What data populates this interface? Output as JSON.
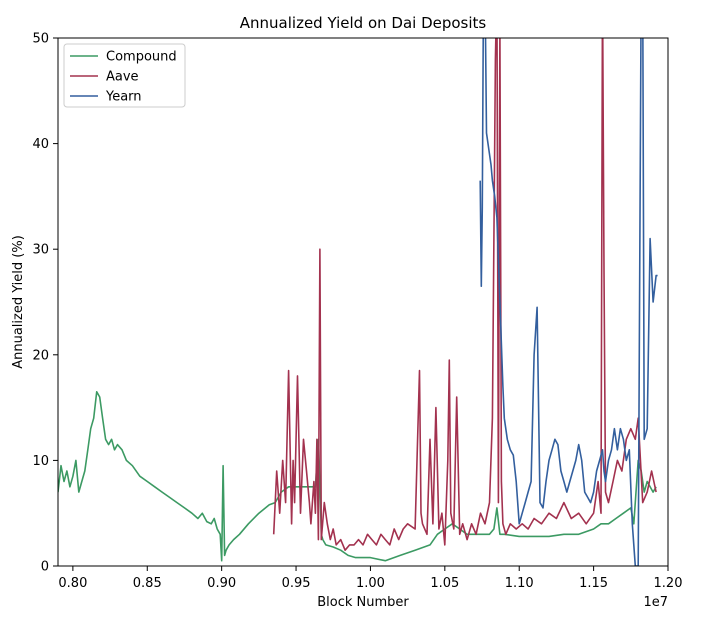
{
  "chart_data": {
    "type": "line",
    "title": "Annualized Yield on Dai Deposits",
    "xlabel": "Block Number",
    "ylabel": "Annualized Yield (%)",
    "x_offset_label": "1e7",
    "xlim": [
      0.79,
      1.2
    ],
    "ylim": [
      0,
      50
    ],
    "x_ticks": [
      0.8,
      0.85,
      0.9,
      0.95,
      1.0,
      1.05,
      1.1,
      1.15,
      1.2
    ],
    "x_tick_labels": [
      "0.80",
      "0.85",
      "0.90",
      "0.95",
      "1.00",
      "1.05",
      "1.10",
      "1.15",
      "1.20"
    ],
    "y_ticks": [
      0,
      10,
      20,
      30,
      40,
      50
    ],
    "y_tick_labels": [
      "0",
      "10",
      "20",
      "30",
      "40",
      "50"
    ],
    "grid": false,
    "legend_position": "top-left",
    "series": [
      {
        "name": "Compound",
        "color": "#3c9a63",
        "x": [
          0.79,
          0.792,
          0.794,
          0.796,
          0.798,
          0.8,
          0.802,
          0.804,
          0.806,
          0.808,
          0.81,
          0.812,
          0.814,
          0.816,
          0.818,
          0.82,
          0.821,
          0.822,
          0.824,
          0.826,
          0.828,
          0.83,
          0.833,
          0.836,
          0.84,
          0.845,
          0.85,
          0.855,
          0.86,
          0.865,
          0.87,
          0.875,
          0.88,
          0.884,
          0.887,
          0.89,
          0.893,
          0.895,
          0.897,
          0.899,
          0.9,
          0.901,
          0.902,
          0.903,
          0.905,
          0.908,
          0.912,
          0.918,
          0.925,
          0.932,
          0.936,
          0.94,
          0.945,
          0.95,
          0.955,
          0.96,
          0.963,
          0.965,
          0.966,
          0.967,
          0.968,
          0.97,
          0.975,
          0.98,
          0.985,
          0.99,
          0.995,
          1.0,
          1.01,
          1.02,
          1.03,
          1.04,
          1.045,
          1.05,
          1.055,
          1.06,
          1.065,
          1.07,
          1.075,
          1.08,
          1.083,
          1.085,
          1.087,
          1.09,
          1.1,
          1.11,
          1.12,
          1.13,
          1.14,
          1.15,
          1.155,
          1.16,
          1.165,
          1.17,
          1.175,
          1.177,
          1.18,
          1.182,
          1.184,
          1.186,
          1.188,
          1.19,
          1.192
        ],
        "y": [
          7.0,
          9.5,
          8.0,
          9.0,
          7.5,
          8.5,
          10.0,
          7.0,
          8.0,
          9.0,
          11.0,
          13.0,
          14.0,
          16.5,
          16.0,
          14.0,
          13.0,
          12.0,
          11.5,
          12.0,
          11.0,
          11.5,
          11.0,
          10.0,
          9.5,
          8.5,
          8.0,
          7.5,
          7.0,
          6.5,
          6.0,
          5.5,
          5.0,
          4.5,
          5.0,
          4.2,
          4.0,
          4.5,
          3.5,
          3.0,
          0.5,
          9.5,
          1.0,
          1.5,
          2.0,
          2.5,
          3.0,
          4.0,
          5.0,
          5.8,
          6.0,
          7.0,
          7.5,
          7.5,
          7.5,
          7.5,
          7.5,
          12.0,
          8.0,
          3.0,
          2.5,
          2.0,
          1.8,
          1.5,
          1.0,
          0.8,
          0.8,
          0.8,
          0.5,
          1.0,
          1.5,
          2.0,
          3.0,
          3.5,
          4.0,
          3.5,
          3.0,
          3.0,
          3.0,
          3.0,
          3.5,
          5.5,
          3.0,
          3.0,
          2.8,
          2.8,
          2.8,
          3.0,
          3.0,
          3.5,
          4.0,
          4.0,
          4.5,
          5.0,
          5.5,
          4.0,
          10.0,
          9.0,
          7.0,
          8.0,
          7.5,
          7.0,
          7.5
        ]
      },
      {
        "name": "Aave",
        "color": "#a3324f",
        "x": [
          0.935,
          0.937,
          0.939,
          0.941,
          0.943,
          0.945,
          0.947,
          0.948,
          0.949,
          0.951,
          0.953,
          0.955,
          0.957,
          0.959,
          0.96,
          0.962,
          0.963,
          0.964,
          0.965,
          0.966,
          0.967,
          0.969,
          0.971,
          0.973,
          0.975,
          0.977,
          0.98,
          0.983,
          0.986,
          0.989,
          0.992,
          0.995,
          0.998,
          1.001,
          1.004,
          1.007,
          1.01,
          1.013,
          1.016,
          1.019,
          1.022,
          1.025,
          1.03,
          1.033,
          1.034,
          1.035,
          1.038,
          1.04,
          1.042,
          1.044,
          1.046,
          1.048,
          1.05,
          1.052,
          1.053,
          1.054,
          1.056,
          1.058,
          1.06,
          1.062,
          1.065,
          1.068,
          1.071,
          1.074,
          1.077,
          1.08,
          1.082,
          1.084,
          1.085,
          1.086,
          1.087,
          1.088,
          1.089,
          1.091,
          1.094,
          1.098,
          1.102,
          1.106,
          1.11,
          1.115,
          1.12,
          1.125,
          1.13,
          1.135,
          1.14,
          1.145,
          1.15,
          1.153,
          1.155,
          1.156,
          1.157,
          1.158,
          1.16,
          1.163,
          1.166,
          1.169,
          1.172,
          1.175,
          1.178,
          1.18,
          1.183,
          1.186,
          1.189,
          1.192
        ],
        "y": [
          3.0,
          9.0,
          5.0,
          10.0,
          6.0,
          18.5,
          4.0,
          10.0,
          6.0,
          18.0,
          5.0,
          12.0,
          9.0,
          6.0,
          4.0,
          8.0,
          5.0,
          12.0,
          2.5,
          30.0,
          2.5,
          6.0,
          4.0,
          2.5,
          3.5,
          2.0,
          2.5,
          1.5,
          2.0,
          2.0,
          2.5,
          2.0,
          3.0,
          2.5,
          2.0,
          3.0,
          2.5,
          2.0,
          3.5,
          2.5,
          3.5,
          4.0,
          3.5,
          18.5,
          5.0,
          4.0,
          3.0,
          12.0,
          4.0,
          15.0,
          3.5,
          5.0,
          2.0,
          10.0,
          19.5,
          5.0,
          3.5,
          16.0,
          3.0,
          4.0,
          2.5,
          4.0,
          3.0,
          5.0,
          4.0,
          6.0,
          14.0,
          48.0,
          55.0,
          6.0,
          51.0,
          8.0,
          4.0,
          3.0,
          4.0,
          3.5,
          4.0,
          3.5,
          4.5,
          4.0,
          5.0,
          4.5,
          6.0,
          4.5,
          5.0,
          4.0,
          5.0,
          8.0,
          5.0,
          55.0,
          28.0,
          7.0,
          6.0,
          8.0,
          10.0,
          9.0,
          12.0,
          13.0,
          12.0,
          14.0,
          6.0,
          7.0,
          9.0,
          7.0
        ]
      },
      {
        "name": "Yearn",
        "color": "#335f9e",
        "x": [
          1.0738,
          1.0745,
          1.0752,
          1.076,
          1.077,
          1.078,
          1.079,
          1.08,
          1.081,
          1.082,
          1.0835,
          1.085,
          1.086,
          1.087,
          1.088,
          1.089,
          1.09,
          1.092,
          1.094,
          1.096,
          1.098,
          1.1,
          1.102,
          1.104,
          1.106,
          1.108,
          1.11,
          1.112,
          1.114,
          1.116,
          1.118,
          1.12,
          1.122,
          1.124,
          1.126,
          1.128,
          1.13,
          1.132,
          1.134,
          1.136,
          1.138,
          1.14,
          1.142,
          1.144,
          1.146,
          1.148,
          1.15,
          1.152,
          1.154,
          1.156,
          1.157,
          1.158,
          1.16,
          1.162,
          1.164,
          1.166,
          1.168,
          1.17,
          1.172,
          1.174,
          1.176,
          1.178,
          1.18,
          1.182,
          1.183,
          1.184,
          1.186,
          1.188,
          1.19,
          1.192,
          1.193
        ],
        "y": [
          36.5,
          26.5,
          34.0,
          55.0,
          55.0,
          41.0,
          40.0,
          39.0,
          38.0,
          36.5,
          35.0,
          33.0,
          29.0,
          25.0,
          21.0,
          17.0,
          14.0,
          12.0,
          11.0,
          10.5,
          8.0,
          4.0,
          5.0,
          6.0,
          7.0,
          8.0,
          20.0,
          24.5,
          6.0,
          5.5,
          8.0,
          10.0,
          11.0,
          12.0,
          11.5,
          9.0,
          8.0,
          7.0,
          8.0,
          9.0,
          10.0,
          11.5,
          10.0,
          7.0,
          6.5,
          6.0,
          7.0,
          9.0,
          10.0,
          11.0,
          9.0,
          8.0,
          10.0,
          11.0,
          13.0,
          11.0,
          13.0,
          12.0,
          10.0,
          11.0,
          4.0,
          0.0,
          0.0,
          55.0,
          55.0,
          12.0,
          13.0,
          31.0,
          25.0,
          27.5,
          27.5
        ]
      }
    ]
  }
}
